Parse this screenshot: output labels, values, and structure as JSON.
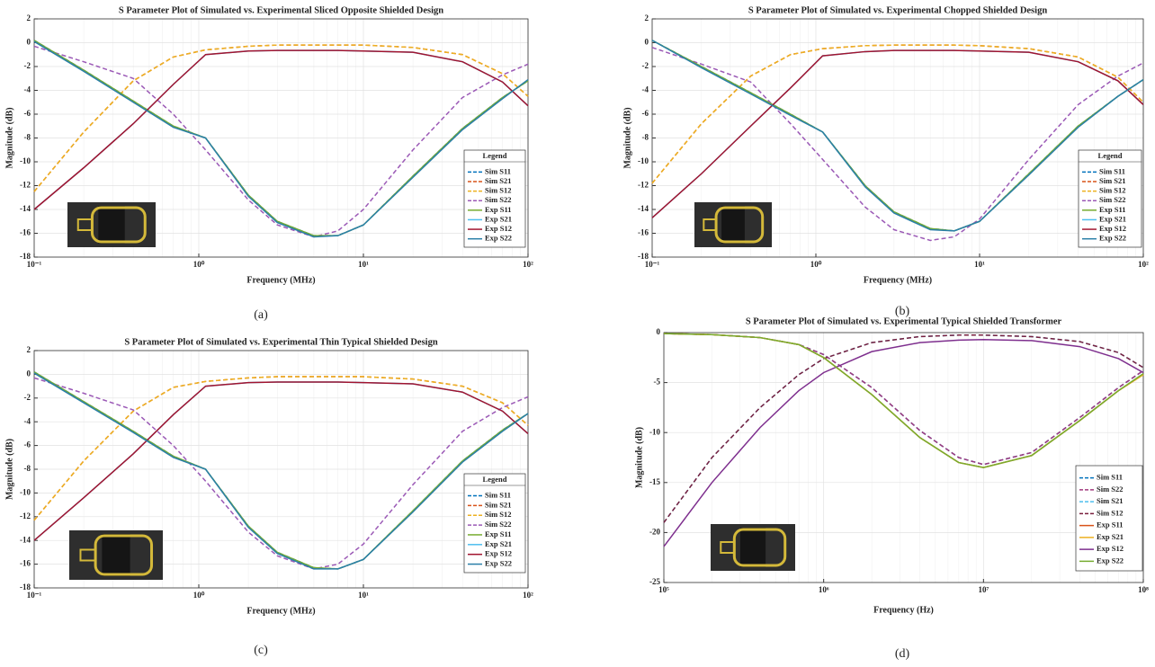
{
  "chart_data": [
    {
      "type": "line",
      "title": "S Parameter Plot of Simulated vs. Experimental Sliced Opposite Shielded Design",
      "caption": "(a)",
      "xlabel": "Frequency (MHz)",
      "ylabel": "Magnitude (dB)",
      "xscale": "log",
      "grid": true,
      "legend_title": "Legend",
      "legend_loc": "lower right",
      "xlim": [
        0.1,
        100
      ],
      "ylim": [
        -18,
        2
      ],
      "xticks": [
        {
          "value": 0.1,
          "label": "10⁻¹"
        },
        {
          "value": 1,
          "label": "10⁰"
        },
        {
          "value": 10,
          "label": "10¹"
        },
        {
          "value": 100,
          "label": "10²"
        }
      ],
      "yticks": [
        -18,
        -16,
        -14,
        -12,
        -10,
        -8,
        -6,
        -4,
        -2,
        0,
        2
      ],
      "x": [
        0.1,
        0.2,
        0.4,
        0.7,
        1.1,
        2,
        3,
        5,
        7,
        10,
        20,
        40,
        70,
        100
      ],
      "series": [
        {
          "name": "Sim S11",
          "color": "#0072bd",
          "dashed": true,
          "values": [
            0.2,
            -2.3,
            -4.9,
            -7.0,
            -8.0,
            -12.8,
            -15.0,
            -16.2,
            -16.2,
            -15.3,
            -11.2,
            -7.2,
            -4.6,
            -3.2
          ]
        },
        {
          "name": "Sim S21",
          "color": "#d95319",
          "dashed": true,
          "values": [
            -12.5,
            -7.5,
            -3.2,
            -1.2,
            -0.6,
            -0.3,
            -0.2,
            -0.2,
            -0.2,
            -0.2,
            -0.4,
            -1.0,
            -2.6,
            -4.5
          ]
        },
        {
          "name": "Sim S12",
          "color": "#edb120",
          "dashed": true,
          "values": [
            -12.5,
            -7.5,
            -3.2,
            -1.2,
            -0.6,
            -0.3,
            -0.2,
            -0.2,
            -0.2,
            -0.2,
            -0.4,
            -1.0,
            -2.6,
            -4.5
          ]
        },
        {
          "name": "Sim S22",
          "color": "#9b59b6",
          "dashed": true,
          "values": [
            -0.3,
            -1.6,
            -3.0,
            -6.0,
            -9.0,
            -13.2,
            -15.3,
            -16.3,
            -15.8,
            -14.0,
            -9.0,
            -4.6,
            -2.7,
            -1.8
          ]
        },
        {
          "name": "Exp S11",
          "color": "#77ac30",
          "dashed": false,
          "values": [
            0.2,
            -2.3,
            -4.9,
            -7.0,
            -8.0,
            -12.8,
            -15.0,
            -16.2,
            -16.2,
            -15.3,
            -11.2,
            -7.2,
            -4.6,
            -3.2
          ]
        },
        {
          "name": "Exp S21",
          "color": "#4dbeee",
          "dashed": false,
          "values": [
            -14.0,
            -10.5,
            -6.8,
            -3.5,
            -1.0,
            -0.7,
            -0.65,
            -0.65,
            -0.65,
            -0.7,
            -0.8,
            -1.6,
            -3.3,
            -5.3
          ]
        },
        {
          "name": "Exp S12",
          "color": "#a2142f",
          "dashed": false,
          "values": [
            -14.0,
            -10.5,
            -6.8,
            -3.5,
            -1.0,
            -0.7,
            -0.65,
            -0.65,
            -0.65,
            -0.7,
            -0.8,
            -1.6,
            -3.3,
            -5.3
          ]
        },
        {
          "name": "Exp S22",
          "color": "#2a7fa8",
          "dashed": false,
          "values": [
            0.1,
            -2.4,
            -5.0,
            -7.1,
            -8.0,
            -12.9,
            -15.1,
            -16.3,
            -16.2,
            -15.3,
            -11.3,
            -7.3,
            -4.7,
            -3.1
          ]
        }
      ]
    },
    {
      "type": "line",
      "title": "S Parameter Plot of Simulated vs. Experimental Chopped Shielded Design",
      "caption": "(b)",
      "xlabel": "Frequency (MHz)",
      "ylabel": "Magnitude (dB)",
      "xscale": "log",
      "grid": true,
      "legend_title": "Legend",
      "legend_loc": "lower right",
      "xlim": [
        0.1,
        100
      ],
      "ylim": [
        -18,
        2
      ],
      "xticks": [
        {
          "value": 0.1,
          "label": "10⁻¹"
        },
        {
          "value": 1,
          "label": "10⁰"
        },
        {
          "value": 10,
          "label": "10¹"
        },
        {
          "value": 100,
          "label": "10²"
        }
      ],
      "yticks": [
        -18,
        -16,
        -14,
        -12,
        -10,
        -8,
        -6,
        -4,
        -2,
        0,
        2
      ],
      "x": [
        0.1,
        0.2,
        0.4,
        0.7,
        1.1,
        2,
        3,
        5,
        7,
        10,
        20,
        40,
        70,
        100
      ],
      "series": [
        {
          "name": "Sim S11",
          "color": "#0072bd",
          "dashed": true,
          "values": [
            0.2,
            -2.0,
            -4.2,
            -6.0,
            -7.5,
            -12.0,
            -14.2,
            -15.6,
            -15.8,
            -15.0,
            -11.0,
            -7.0,
            -4.5,
            -3.1
          ]
        },
        {
          "name": "Sim S21",
          "color": "#d95319",
          "dashed": true,
          "values": [
            -11.8,
            -6.8,
            -2.8,
            -1.0,
            -0.5,
            -0.25,
            -0.2,
            -0.2,
            -0.2,
            -0.25,
            -0.5,
            -1.2,
            -2.9,
            -5.0
          ]
        },
        {
          "name": "Sim S12",
          "color": "#edb120",
          "dashed": true,
          "values": [
            -11.8,
            -6.8,
            -2.8,
            -1.0,
            -0.5,
            -0.25,
            -0.2,
            -0.2,
            -0.2,
            -0.25,
            -0.5,
            -1.2,
            -2.9,
            -5.0
          ]
        },
        {
          "name": "Sim S22",
          "color": "#9b59b6",
          "dashed": true,
          "values": [
            -0.4,
            -1.8,
            -3.3,
            -6.8,
            -9.8,
            -13.8,
            -15.7,
            -16.6,
            -16.3,
            -14.8,
            -9.8,
            -5.2,
            -2.8,
            -1.7
          ]
        },
        {
          "name": "Exp S11",
          "color": "#77ac30",
          "dashed": false,
          "values": [
            0.2,
            -2.0,
            -4.2,
            -6.0,
            -7.5,
            -12.0,
            -14.2,
            -15.6,
            -15.8,
            -15.0,
            -11.0,
            -7.0,
            -4.5,
            -3.1
          ]
        },
        {
          "name": "Exp S21",
          "color": "#4dbeee",
          "dashed": false,
          "values": [
            -14.7,
            -11.0,
            -7.0,
            -3.8,
            -1.1,
            -0.75,
            -0.65,
            -0.65,
            -0.65,
            -0.7,
            -0.8,
            -1.6,
            -3.2,
            -5.2
          ]
        },
        {
          "name": "Exp S12",
          "color": "#a2142f",
          "dashed": false,
          "values": [
            -14.7,
            -11.0,
            -7.0,
            -3.8,
            -1.1,
            -0.75,
            -0.65,
            -0.65,
            -0.65,
            -0.7,
            -0.8,
            -1.6,
            -3.2,
            -5.2
          ]
        },
        {
          "name": "Exp S22",
          "color": "#2a7fa8",
          "dashed": false,
          "values": [
            0.2,
            -2.1,
            -4.3,
            -6.1,
            -7.5,
            -12.1,
            -14.3,
            -15.7,
            -15.8,
            -15.0,
            -11.1,
            -7.1,
            -4.5,
            -3.1
          ]
        }
      ]
    },
    {
      "type": "line",
      "title": "S Parameter Plot of Simulated vs. Experimental Thin Typical Shielded Design",
      "caption": "(c)",
      "xlabel": "Frequency (MHz)",
      "ylabel": "Magnitude (dB)",
      "xscale": "log",
      "grid": true,
      "legend_title": "Legend",
      "legend_loc": "lower right",
      "xlim": [
        0.1,
        100
      ],
      "ylim": [
        -18,
        2
      ],
      "xticks": [
        {
          "value": 0.1,
          "label": "10⁻¹"
        },
        {
          "value": 1,
          "label": "10⁰"
        },
        {
          "value": 10,
          "label": "10¹"
        },
        {
          "value": 100,
          "label": "10²"
        }
      ],
      "yticks": [
        -18,
        -16,
        -14,
        -12,
        -10,
        -8,
        -6,
        -4,
        -2,
        0,
        2
      ],
      "x": [
        0.1,
        0.2,
        0.4,
        0.7,
        1.1,
        2,
        3,
        5,
        7,
        10,
        20,
        40,
        70,
        100
      ],
      "series": [
        {
          "name": "Sim S11",
          "color": "#0072bd",
          "dashed": true,
          "values": [
            0.2,
            -2.3,
            -4.8,
            -6.9,
            -8.0,
            -12.8,
            -15.0,
            -16.3,
            -16.4,
            -15.6,
            -11.5,
            -7.3,
            -4.7,
            -3.3
          ]
        },
        {
          "name": "Sim S21",
          "color": "#d95319",
          "dashed": true,
          "values": [
            -12.3,
            -7.3,
            -3.1,
            -1.1,
            -0.6,
            -0.3,
            -0.2,
            -0.2,
            -0.2,
            -0.2,
            -0.4,
            -1.0,
            -2.4,
            -4.3
          ]
        },
        {
          "name": "Sim S12",
          "color": "#edb120",
          "dashed": true,
          "values": [
            -12.3,
            -7.3,
            -3.1,
            -1.1,
            -0.6,
            -0.3,
            -0.2,
            -0.2,
            -0.2,
            -0.2,
            -0.4,
            -1.0,
            -2.4,
            -4.3
          ]
        },
        {
          "name": "Sim S22",
          "color": "#9b59b6",
          "dashed": true,
          "values": [
            -0.3,
            -1.6,
            -3.0,
            -6.0,
            -9.0,
            -13.3,
            -15.3,
            -16.4,
            -16.0,
            -14.3,
            -9.3,
            -4.8,
            -2.8,
            -1.9
          ]
        },
        {
          "name": "Exp S11",
          "color": "#77ac30",
          "dashed": false,
          "values": [
            0.2,
            -2.3,
            -4.8,
            -6.9,
            -8.0,
            -12.8,
            -15.0,
            -16.3,
            -16.4,
            -15.6,
            -11.5,
            -7.3,
            -4.7,
            -3.3
          ]
        },
        {
          "name": "Exp S21",
          "color": "#4dbeee",
          "dashed": false,
          "values": [
            -14.0,
            -10.4,
            -6.7,
            -3.4,
            -1.0,
            -0.7,
            -0.65,
            -0.65,
            -0.65,
            -0.7,
            -0.8,
            -1.5,
            -3.1,
            -5.0
          ]
        },
        {
          "name": "Exp S12",
          "color": "#a2142f",
          "dashed": false,
          "values": [
            -14.0,
            -10.4,
            -6.7,
            -3.4,
            -1.0,
            -0.7,
            -0.65,
            -0.65,
            -0.65,
            -0.7,
            -0.8,
            -1.5,
            -3.1,
            -5.0
          ]
        },
        {
          "name": "Exp S22",
          "color": "#2a7fa8",
          "dashed": false,
          "values": [
            0.1,
            -2.4,
            -4.9,
            -7.0,
            -8.0,
            -12.9,
            -15.1,
            -16.4,
            -16.4,
            -15.6,
            -11.6,
            -7.4,
            -4.8,
            -3.3
          ]
        }
      ]
    },
    {
      "type": "line",
      "title": "S Parameter Plot of Simulated vs. Experimental Typical Shielded Transformer",
      "caption": "(d)",
      "xlabel": "Frequency (Hz)",
      "ylabel": "Magnitude (dB)",
      "xscale": "log",
      "grid": true,
      "legend_loc": "lower right",
      "xlim": [
        100000,
        100000000
      ],
      "ylim": [
        -25,
        0
      ],
      "xticks": [
        {
          "value": 100000,
          "label": "10⁵"
        },
        {
          "value": 1000000,
          "label": "10⁶"
        },
        {
          "value": 10000000,
          "label": "10⁷"
        },
        {
          "value": 100000000,
          "label": "10⁸"
        }
      ],
      "yticks": [
        -25,
        -20,
        -15,
        -10,
        -5,
        0
      ],
      "x": [
        100000,
        200000,
        400000,
        700000,
        1000000,
        2000000,
        4000000,
        7000000,
        10000000,
        20000000,
        40000000,
        70000000,
        100000000
      ],
      "series": [
        {
          "name": "Sim S11",
          "color": "#0072bd",
          "dashed": true,
          "values": [
            -0.1,
            -0.2,
            -0.5,
            -1.2,
            -2.2,
            -5.5,
            -9.8,
            -12.5,
            -13.2,
            -12.0,
            -8.5,
            -5.5,
            -3.8
          ]
        },
        {
          "name": "Sim S22",
          "color": "#a0397d",
          "dashed": true,
          "values": [
            -0.1,
            -0.2,
            -0.5,
            -1.2,
            -2.2,
            -5.5,
            -9.8,
            -12.5,
            -13.2,
            -12.0,
            -8.5,
            -5.5,
            -3.8
          ]
        },
        {
          "name": "Sim S21",
          "color": "#4dbeee",
          "dashed": true,
          "values": [
            -19.0,
            -12.5,
            -7.5,
            -4.2,
            -2.6,
            -1.0,
            -0.4,
            -0.25,
            -0.25,
            -0.4,
            -0.9,
            -2.0,
            -3.5
          ]
        },
        {
          "name": "Sim S12",
          "color": "#7a1f3d",
          "dashed": true,
          "values": [
            -19.0,
            -12.5,
            -7.5,
            -4.2,
            -2.6,
            -1.0,
            -0.4,
            -0.25,
            -0.25,
            -0.4,
            -0.9,
            -2.0,
            -3.5
          ]
        },
        {
          "name": "Exp S11",
          "color": "#d95319",
          "dashed": false,
          "values": [
            -0.1,
            -0.2,
            -0.5,
            -1.2,
            -2.5,
            -6.2,
            -10.5,
            -13.0,
            -13.5,
            -12.3,
            -8.8,
            -5.8,
            -4.2
          ]
        },
        {
          "name": "Exp S21",
          "color": "#edb120",
          "dashed": false,
          "values": [
            -0.1,
            -0.2,
            -0.5,
            -1.2,
            -2.5,
            -6.2,
            -10.5,
            -13.0,
            -13.5,
            -12.3,
            -8.8,
            -5.8,
            -4.2
          ]
        },
        {
          "name": "Exp S12",
          "color": "#7e2f8e",
          "dashed": false,
          "values": [
            -21.4,
            -15.0,
            -9.5,
            -5.8,
            -4.0,
            -1.9,
            -1.0,
            -0.75,
            -0.7,
            -0.8,
            -1.4,
            -2.6,
            -4.0
          ]
        },
        {
          "name": "Exp S22",
          "color": "#77ac30",
          "dashed": false,
          "values": [
            -0.1,
            -0.2,
            -0.5,
            -1.2,
            -2.5,
            -6.2,
            -10.5,
            -13.0,
            -13.5,
            -12.3,
            -8.8,
            -5.8,
            -4.1
          ]
        }
      ]
    }
  ]
}
